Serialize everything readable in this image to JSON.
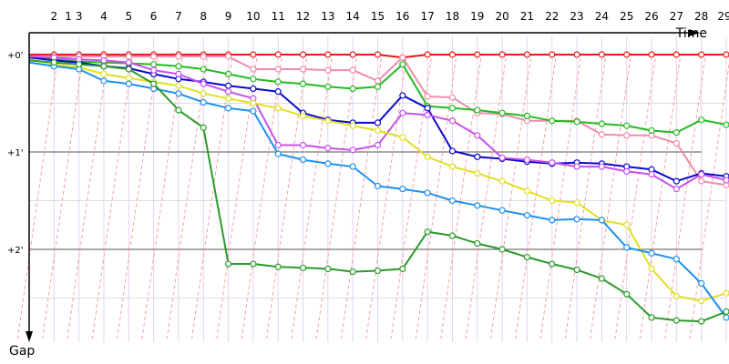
{
  "chart_data": {
    "type": "line",
    "x_axis_label": "Time",
    "y_axis_label": "Gap",
    "x_ticks": [
      "1",
      "2",
      "3",
      "4",
      "5",
      "6",
      "7",
      "8",
      "9",
      "10",
      "11",
      "12",
      "13",
      "14",
      "15",
      "16",
      "17",
      "18",
      "19",
      "20",
      "21",
      "22",
      "23",
      "24",
      "25",
      "26",
      "27",
      "28",
      "29"
    ],
    "y_ticks": [
      "+0'",
      "+1'",
      "+2'"
    ],
    "ylim": [
      0,
      2.8
    ],
    "y_unit": "minutes behind leader",
    "grid": "horizontal major lines at whole minutes, vertical lap lines",
    "series": [
      {
        "color": "#e81818",
        "values": [
          0,
          0,
          0,
          0,
          0,
          0,
          0,
          0,
          0,
          0,
          0,
          0,
          0,
          0,
          0,
          0.03,
          0,
          0,
          0,
          0,
          0,
          0,
          0,
          0,
          0,
          0,
          0,
          0,
          0
        ]
      },
      {
        "color": "#f08ca8",
        "values": [
          0.02,
          0.02,
          0.02,
          0.02,
          0.02,
          0.02,
          0.02,
          0.02,
          0.02,
          0.15,
          0.15,
          0.15,
          0.16,
          0.16,
          0.27,
          0.03,
          0.43,
          0.44,
          0.6,
          0.61,
          0.68,
          0.68,
          0.68,
          0.82,
          0.83,
          0.83,
          0.91,
          1.3,
          1.34
        ]
      },
      {
        "color": "#22bb22",
        "values": [
          0.03,
          0.05,
          0.07,
          0.08,
          0.09,
          0.1,
          0.12,
          0.15,
          0.2,
          0.25,
          0.28,
          0.3,
          0.33,
          0.35,
          0.33,
          0.1,
          0.53,
          0.55,
          0.57,
          0.6,
          0.63,
          0.68,
          0.69,
          0.71,
          0.73,
          0.78,
          0.8,
          0.67,
          0.72
        ]
      },
      {
        "color": "#0a0acc",
        "values": [
          0.03,
          0.06,
          0.08,
          0.12,
          0.14,
          0.2,
          0.25,
          0.28,
          0.32,
          0.35,
          0.38,
          0.6,
          0.67,
          0.7,
          0.7,
          0.42,
          0.55,
          0.99,
          1.05,
          1.07,
          1.1,
          1.12,
          1.11,
          1.12,
          1.15,
          1.18,
          1.3,
          1.22,
          1.25
        ]
      },
      {
        "color": "#c850e8",
        "values": [
          0.02,
          0.03,
          0.05,
          0.06,
          0.08,
          0.16,
          0.2,
          0.3,
          0.38,
          0.45,
          0.93,
          0.93,
          0.96,
          0.98,
          0.93,
          0.6,
          0.62,
          0.68,
          0.83,
          1.06,
          1.08,
          1.11,
          1.15,
          1.15,
          1.2,
          1.23,
          1.38,
          1.23,
          1.29
        ]
      },
      {
        "color": "#e0e020",
        "values": [
          0.05,
          0.1,
          0.13,
          0.2,
          0.24,
          0.28,
          0.32,
          0.4,
          0.45,
          0.5,
          0.55,
          0.63,
          0.68,
          0.73,
          0.78,
          0.85,
          1.05,
          1.15,
          1.22,
          1.3,
          1.4,
          1.5,
          1.52,
          1.7,
          1.75,
          2.2,
          2.48,
          2.53,
          2.45
        ]
      },
      {
        "color": "#1e90ee",
        "values": [
          0.08,
          0.12,
          0.15,
          0.27,
          0.3,
          0.35,
          0.4,
          0.49,
          0.55,
          0.58,
          1.02,
          1.08,
          1.12,
          1.15,
          1.35,
          1.38,
          1.42,
          1.5,
          1.55,
          1.6,
          1.65,
          1.7,
          1.69,
          1.7,
          1.98,
          2.04,
          2.1,
          2.35,
          2.7
        ]
      },
      {
        "color": "#2a9a2a",
        "values": [
          0.06,
          0.08,
          0.1,
          0.12,
          0.15,
          0.3,
          0.57,
          0.75,
          2.15,
          2.15,
          2.18,
          2.19,
          2.2,
          2.23,
          2.22,
          2.2,
          1.82,
          1.86,
          1.94,
          2.0,
          2.08,
          2.15,
          2.21,
          2.3,
          2.46,
          2.7,
          2.73,
          2.74,
          2.64
        ]
      }
    ]
  }
}
